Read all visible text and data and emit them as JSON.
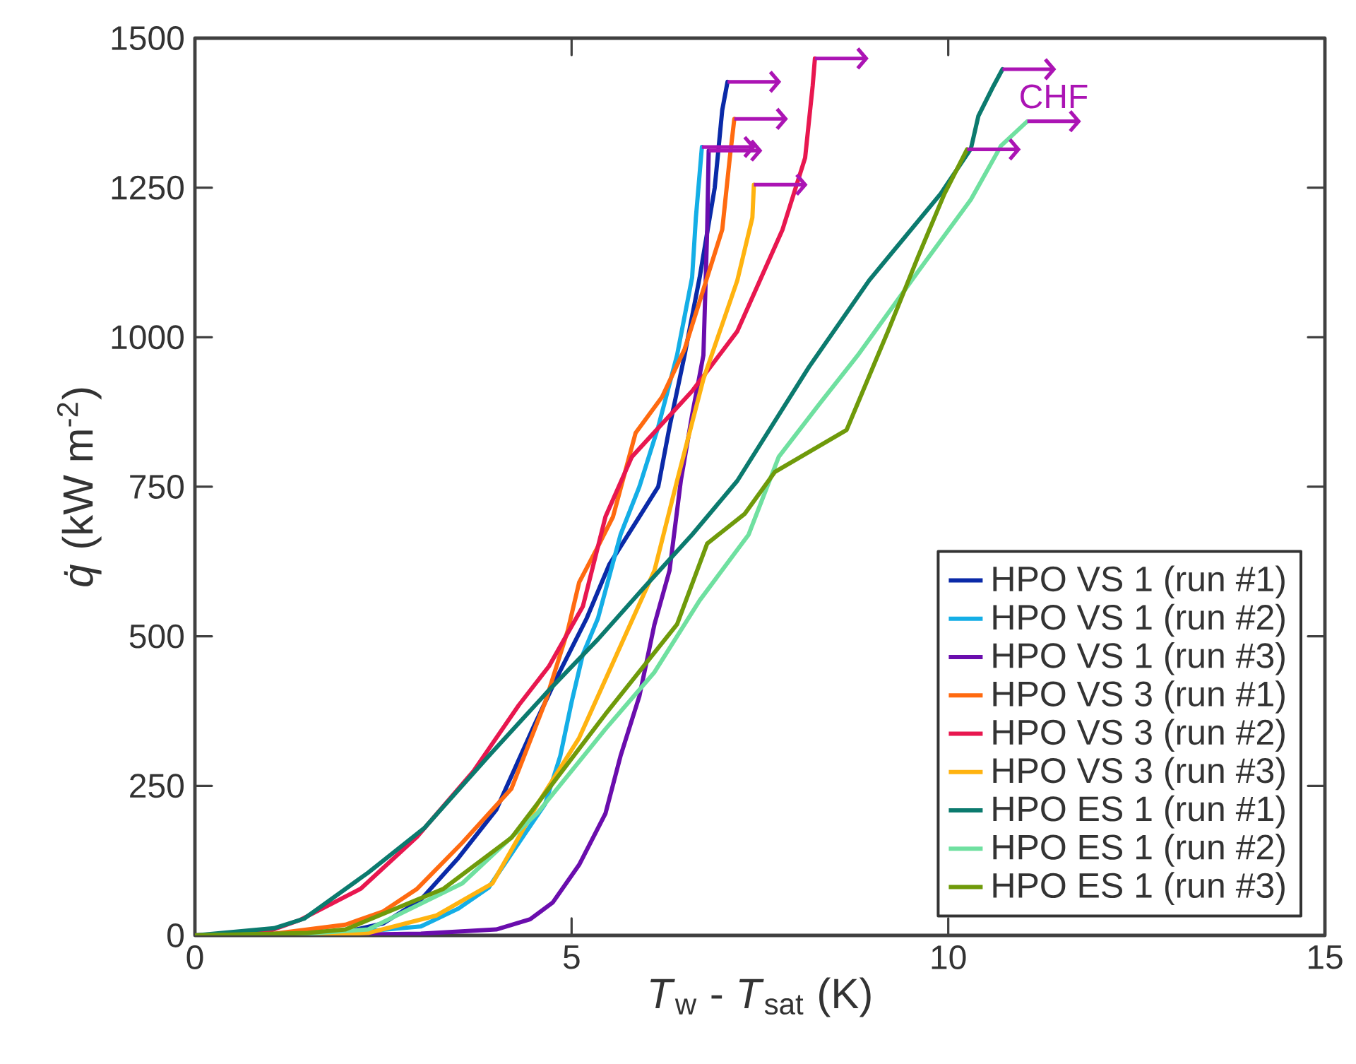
{
  "chart_data": {
    "type": "line",
    "xlabel": "*T*$_{w}$ - *T*$_{sat}$ (K)",
    "ylabel": "*q̇* (kW m$^{-2}$)",
    "xlim": [
      0,
      15
    ],
    "ylim": [
      0,
      1500
    ],
    "xticks": [
      0,
      5,
      10,
      15
    ],
    "yticks": [
      0,
      250,
      500,
      750,
      1000,
      1250,
      1500
    ],
    "legend": "bottom right",
    "grid": false,
    "marker": "none",
    "line_style": "solid",
    "annotations": [
      "CHF"
    ],
    "series": [
      {
        "name": "HPO VS 1 (run #1)",
        "color": "#0a2aa8",
        "x": [
          0,
          1,
          2,
          2.5,
          3,
          3.5,
          4,
          4.5,
          4.8,
          5.2,
          5.5,
          5.9,
          6.15,
          6.3,
          6.5,
          6.7,
          6.9,
          7.0,
          7.07
        ],
        "values": [
          0,
          2,
          6,
          20,
          60,
          130,
          210,
          350,
          430,
          530,
          620,
          700,
          750,
          850,
          970,
          1100,
          1250,
          1380,
          1427
        ]
      },
      {
        "name": "HPO VS 1 (run #2)",
        "color": "#14aee6",
        "x": [
          0,
          2,
          3,
          3.5,
          3.9,
          4.3,
          4.65,
          4.85,
          5.0,
          5.15,
          5.35,
          5.65,
          5.9,
          6.15,
          6.4,
          6.6,
          6.65,
          6.73
        ],
        "values": [
          0,
          4,
          15,
          45,
          80,
          155,
          220,
          300,
          390,
          470,
          530,
          670,
          750,
          850,
          970,
          1100,
          1200,
          1318
        ]
      },
      {
        "name": "HPO VS 1 (run #3)",
        "color": "#6a0dad",
        "x": [
          0,
          2,
          3,
          4,
          4.45,
          4.75,
          5.1,
          5.45,
          5.65,
          5.9,
          6.1,
          6.3,
          6.45,
          6.6,
          6.75,
          6.8,
          6.82
        ],
        "values": [
          0,
          1,
          3,
          10,
          27,
          55,
          118,
          204,
          300,
          400,
          520,
          610,
          760,
          870,
          970,
          1180,
          1312
        ]
      },
      {
        "name": "HPO VS 3 (run #1)",
        "color": "#ff6a10",
        "x": [
          0,
          1,
          2,
          2.5,
          2.95,
          3.55,
          4.2,
          4.65,
          4.95,
          5.1,
          5.35,
          5.55,
          5.85,
          6.2,
          6.5,
          6.8,
          7.0,
          7.1,
          7.16
        ],
        "values": [
          0,
          2,
          18,
          40,
          78,
          155,
          245,
          390,
          510,
          590,
          650,
          700,
          840,
          900,
          980,
          1100,
          1180,
          1300,
          1365
        ]
      },
      {
        "name": "HPO VS 3 (run #2)",
        "color": "#e8174f",
        "x": [
          0,
          1,
          1.4,
          2.2,
          2.95,
          3.7,
          4.3,
          4.7,
          5.15,
          5.45,
          5.8,
          6.6,
          7.2,
          7.8,
          8.1,
          8.2,
          8.23
        ],
        "values": [
          0,
          8,
          26,
          78,
          165,
          275,
          385,
          450,
          550,
          700,
          800,
          910,
          1010,
          1180,
          1300,
          1420,
          1466
        ]
      },
      {
        "name": "HPO VS 3 (run #3)",
        "color": "#ffb310",
        "x": [
          0,
          1.5,
          2.3,
          3.2,
          3.95,
          4.55,
          5.1,
          5.6,
          6.1,
          6.4,
          6.75,
          7.2,
          7.4,
          7.42
        ],
        "values": [
          0,
          1,
          4,
          33,
          87,
          220,
          330,
          470,
          610,
          760,
          930,
          1095,
          1200,
          1255
        ]
      },
      {
        "name": "HPO ES 1 (run #1)",
        "color": "#0b7a6e",
        "x": [
          0,
          1.05,
          1.45,
          2.3,
          3.05,
          3.9,
          4.7,
          5.35,
          5.95,
          6.6,
          7.2,
          8.15,
          8.95,
          9.9,
          10.3,
          10.4,
          10.6,
          10.72
        ],
        "values": [
          0,
          12,
          28,
          105,
          180,
          300,
          410,
          495,
          580,
          670,
          760,
          950,
          1095,
          1240,
          1315,
          1370,
          1420,
          1448
        ]
      },
      {
        "name": "HPO ES 1 (run #2)",
        "color": "#6fe0a0",
        "x": [
          0,
          1.5,
          2.3,
          3.55,
          4.55,
          5.45,
          6.1,
          6.7,
          7.35,
          7.75,
          8.3,
          8.8,
          9.6,
          10.3,
          10.7,
          11.05
        ],
        "values": [
          0,
          3,
          10,
          87,
          205,
          345,
          440,
          560,
          670,
          800,
          890,
          970,
          1110,
          1230,
          1320,
          1361
        ]
      },
      {
        "name": "HPO ES 1 (run #3)",
        "color": "#6f9a0a",
        "x": [
          0,
          1.5,
          2.0,
          3.3,
          4.2,
          5.45,
          6.4,
          6.8,
          7.3,
          7.7,
          8.65,
          9.2,
          9.6,
          9.95,
          10.25
        ],
        "values": [
          0,
          4,
          10,
          78,
          163,
          370,
          520,
          655,
          705,
          775,
          845,
          1010,
          1135,
          1240,
          1314
        ]
      }
    ]
  }
}
